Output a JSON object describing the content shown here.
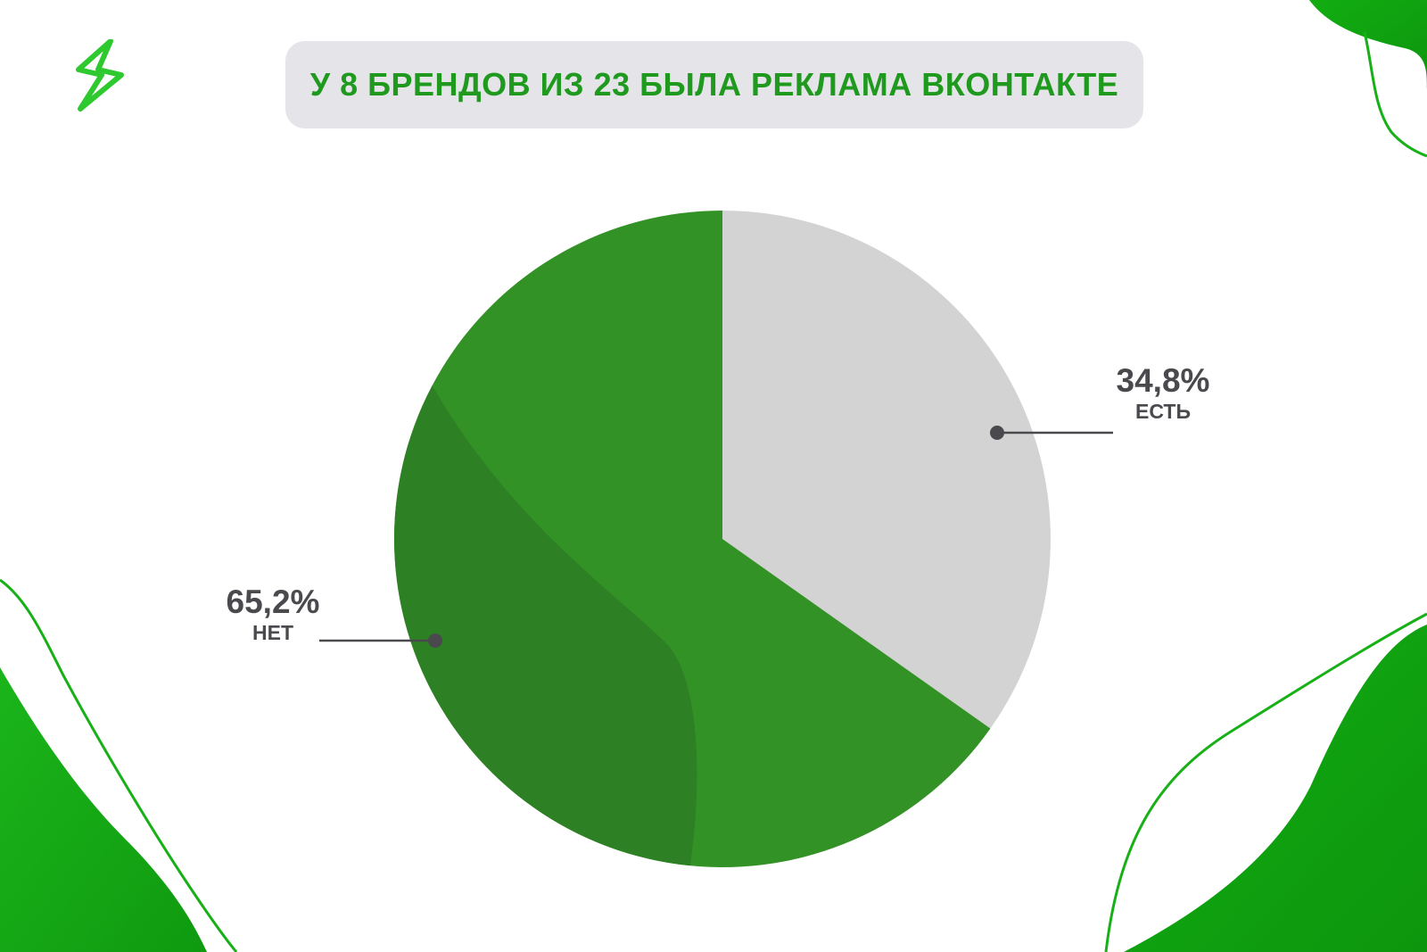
{
  "title": "У 8 БРЕНДОВ ИЗ 23 БЫЛА РЕКЛАМА ВКОНТАКТЕ",
  "logo": {
    "icon": "lightning-bolt-icon",
    "color": "#2ec92e"
  },
  "colors": {
    "accent": "#1f9a1f",
    "slice_no": "#339225",
    "slice_no_shade": "#2d8023",
    "slice_yes": "#d3d3d3",
    "label_text": "#4a4a4e",
    "title_bg": "#e5e5e9"
  },
  "chart_data": {
    "type": "pie",
    "title": "У 8 БРЕНДОВ ИЗ 23 БЫЛА РЕКЛАМА ВКОНТАКТЕ",
    "slices": [
      {
        "name": "ЕСТЬ",
        "value": 34.8,
        "label": "34,8%",
        "color": "#d3d3d3"
      },
      {
        "name": "НЕТ",
        "value": 65.2,
        "label": "65,2%",
        "color": "#339225"
      }
    ],
    "start": "12 o'clock",
    "direction": "clockwise",
    "legend": "none"
  }
}
